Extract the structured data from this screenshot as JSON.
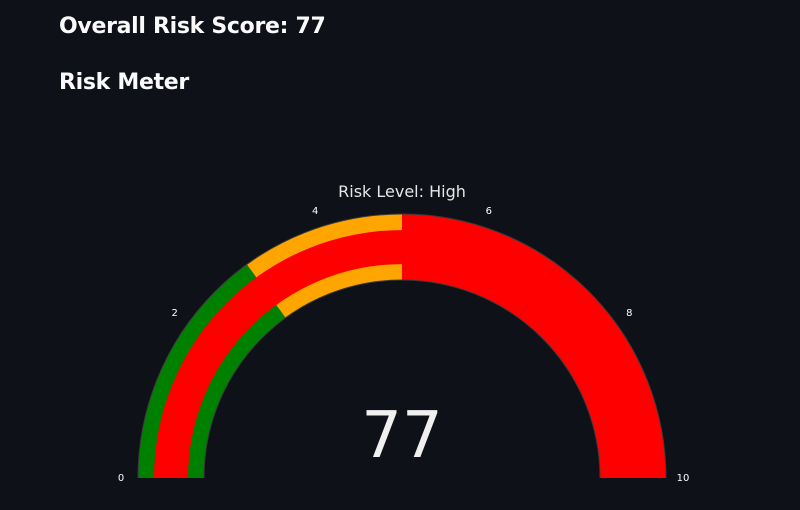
{
  "header": {
    "score_heading": "Overall Risk Score: 77",
    "meter_heading": "Risk Meter"
  },
  "chart_data": {
    "type": "gauge",
    "title": "Risk Level: High",
    "value": 77,
    "value_text": "77",
    "axis_range": [
      0,
      10
    ],
    "ticks": [
      0,
      2,
      4,
      6,
      8,
      10
    ],
    "tick_labels": [
      "0",
      "2",
      "4",
      "6",
      "8",
      "10"
    ],
    "bar_value": 10,
    "bar_color": "#ff0000",
    "steps": [
      {
        "range": [
          0,
          3
        ],
        "color": "#008000"
      },
      {
        "range": [
          3,
          5
        ],
        "color": "#ffa500"
      },
      {
        "range": [
          5,
          7
        ],
        "color": "#ff0000"
      },
      {
        "range": [
          7,
          10
        ],
        "color": "#ff0000"
      }
    ],
    "background_color": "#0e1117",
    "border_color": "#3a3a3a"
  }
}
